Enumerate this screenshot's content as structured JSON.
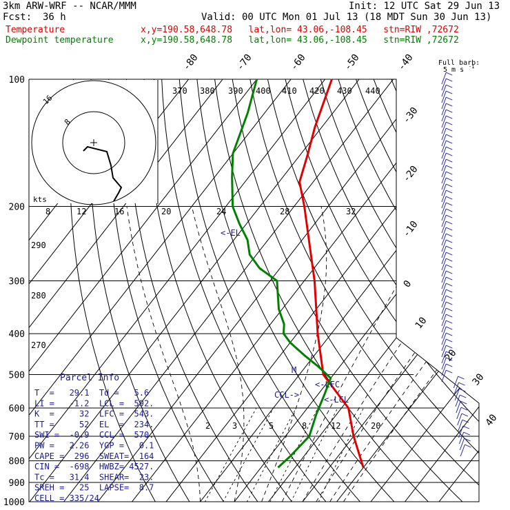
{
  "header": {
    "model": "3km ARW-WRF -- NCAR/MMM",
    "init": "Init: 12 UTC Sat 29 Jun 13",
    "fcst_label": "Fcst:",
    "fcst_value": "36 h",
    "valid": "Valid: 00 UTC Mon 01 Jul 13 (18 MDT Sun 30 Jun 13)",
    "temp_label": "Temperature",
    "dewp_label": "Dewpoint temperature",
    "location": "x,y=190.58,648.78   lat,lon= 43.06,-108.45   stn=RIW ,72672",
    "colors": {
      "temperature": "#e00000",
      "dewpoint": "#008000",
      "wind": "#2a2aa0",
      "label": "#1a1a99"
    }
  },
  "wind_legend": {
    "title": "Full barb:",
    "subtitle": "5 m s",
    "exp": "-1"
  },
  "pressure_labels": [
    "100",
    "200",
    "300",
    "400",
    "500",
    "600",
    "700",
    "800",
    "900",
    "1000"
  ],
  "hodograph": {
    "unit": "kts",
    "ring_labels": [
      "8",
      "16"
    ],
    "x_ticks": [
      "8",
      "12",
      "16",
      "20",
      "24",
      "28",
      "32"
    ]
  },
  "isotherm_labels": [
    "-80",
    "-70",
    "-60",
    "-50",
    "-40",
    "-30",
    "-20",
    "-10",
    "0",
    "10",
    "20",
    "30",
    "40"
  ],
  "theta_labels": [
    "370",
    "380",
    "390",
    "400",
    "410",
    "420",
    "430",
    "440"
  ],
  "theta_left_labels": [
    "290",
    "280",
    "270"
  ],
  "mixing_ratio_labels": [
    "2",
    "3",
    "5",
    "8",
    "12",
    "20"
  ],
  "markers": {
    "el": "<-EL",
    "lfc": "<-LFC",
    "lcl": "<-LCL",
    "ccl": "CCL->",
    "m": "M"
  },
  "parcel_info": {
    "title": "Parcel Info",
    "rows": [
      "T  =   29.1  Td =   5.6",
      "LI =   -1.2  LCL =  592.",
      "K  =     32  LFC =  543.",
      "TT =     52  EL  =  234.",
      "SWI =  -0.9  CCL =  570.",
      "PW =   2.26  YGP =   0.1",
      "CAPE =  296  SWEAT=  164",
      "CIN =  -698  HWBZ= 4527.",
      "Tc =   31.4  SHEAR=  23.",
      "SREH =   25  LAPSE=  8.7",
      "CELL = 335/24"
    ]
  },
  "chart_data": {
    "type": "line",
    "title": "",
    "xlabel": "",
    "ylabel": "",
    "y_axis": "pressure (hPa), log scale",
    "ylim": [
      1000,
      100
    ],
    "series": [
      {
        "name": "Temperature",
        "points": [
          [
            830,
            30
          ],
          [
            700,
            20
          ],
          [
            600,
            12
          ],
          [
            500,
            -3
          ],
          [
            400,
            -14
          ],
          [
            300,
            -27
          ],
          [
            250,
            -36
          ],
          [
            200,
            -47
          ],
          [
            175,
            -54
          ],
          [
            150,
            -58
          ],
          [
            130,
            -62
          ],
          [
            100,
            -68
          ]
        ]
      },
      {
        "name": "Dewpoint temperature",
        "points": [
          [
            830,
            5
          ],
          [
            780,
            6
          ],
          [
            700,
            7
          ],
          [
            620,
            4
          ],
          [
            560,
            2
          ],
          [
            510,
            0
          ],
          [
            480,
            -6
          ],
          [
            450,
            -13
          ],
          [
            420,
            -20
          ],
          [
            400,
            -24
          ],
          [
            380,
            -26
          ],
          [
            350,
            -31
          ],
          [
            300,
            -38
          ],
          [
            280,
            -46
          ],
          [
            260,
            -52
          ],
          [
            240,
            -56
          ],
          [
            220,
            -62
          ],
          [
            200,
            -68
          ],
          [
            170,
            -75
          ],
          [
            150,
            -80
          ],
          [
            120,
            -85
          ],
          [
            100,
            -90
          ]
        ]
      }
    ]
  }
}
